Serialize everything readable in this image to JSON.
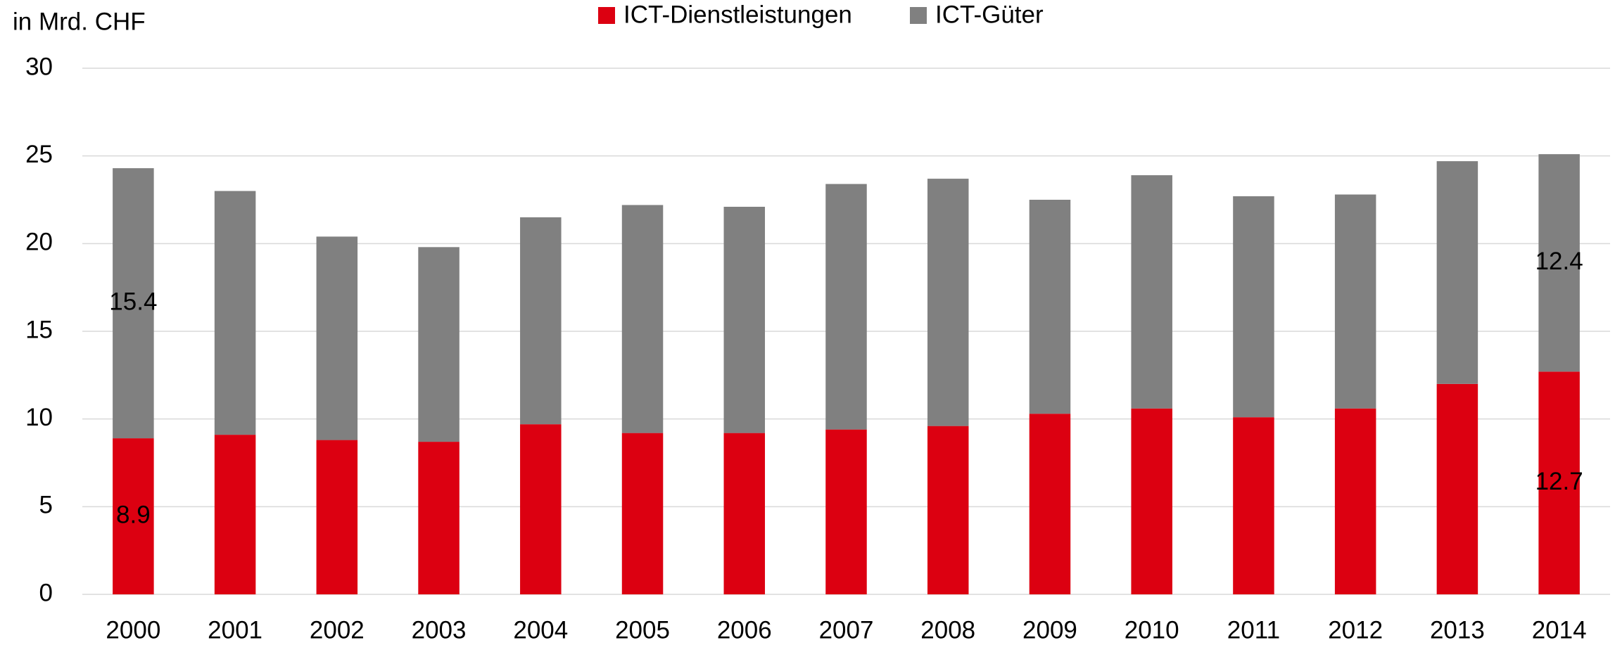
{
  "chart_data": {
    "type": "stacked_bar",
    "y_label": "in Mrd. CHF",
    "categories": [
      "2000",
      "2001",
      "2002",
      "2003",
      "2004",
      "2005",
      "2006",
      "2007",
      "2008",
      "2009",
      "2010",
      "2011",
      "2012",
      "2013",
      "2014"
    ],
    "series": [
      {
        "name": "ICT-Dienstleistungen",
        "color": "#dc0011",
        "values": [
          8.9,
          9.1,
          8.8,
          8.7,
          9.7,
          9.2,
          9.2,
          9.4,
          9.6,
          10.3,
          10.6,
          10.1,
          10.6,
          12.0,
          12.7
        ],
        "value_labels": [
          "8.9",
          null,
          null,
          null,
          null,
          null,
          null,
          null,
          null,
          null,
          null,
          null,
          null,
          null,
          "12.7"
        ]
      },
      {
        "name": "ICT-Güter",
        "color": "#808080",
        "values": [
          15.4,
          13.9,
          11.6,
          11.1,
          11.8,
          13.0,
          12.9,
          14.0,
          14.1,
          12.2,
          13.3,
          12.6,
          12.2,
          12.7,
          12.4
        ],
        "value_labels": [
          "15.4",
          null,
          null,
          null,
          null,
          null,
          null,
          null,
          null,
          null,
          null,
          null,
          null,
          null,
          "12.4"
        ]
      }
    ],
    "ylim": [
      0,
      30
    ],
    "yticks": [
      0,
      5,
      10,
      15,
      20,
      25,
      30
    ],
    "grid": true,
    "legend": "top"
  }
}
